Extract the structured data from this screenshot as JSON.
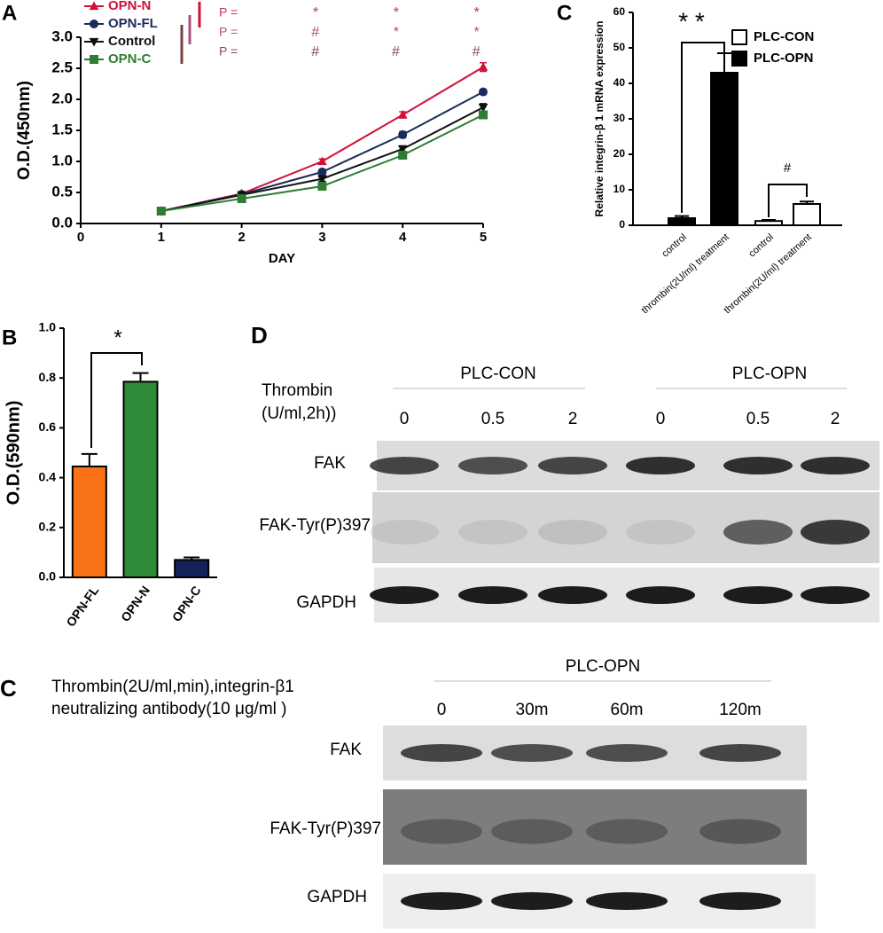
{
  "chart_data": [
    {
      "type": "line",
      "panel": "A",
      "x_label": "DAY",
      "y_label": "O.D.(450nm)",
      "xlim": [
        0,
        5
      ],
      "xticks": [
        0,
        1,
        2,
        3,
        4,
        5
      ],
      "ylim": [
        0,
        3
      ],
      "yticks": [
        {
          "value": 0,
          "label": "0.0"
        },
        0.5,
        {
          "value": 1,
          "label": "1.0"
        },
        1.5,
        {
          "value": 2,
          "label": "2.0"
        },
        2.5,
        {
          "value": 3,
          "label": "3.0"
        }
      ],
      "legend": "upper left",
      "x": [
        1,
        2,
        3,
        4,
        5
      ],
      "series": [
        {
          "name": "OPN-N",
          "color": "#d0103a",
          "marker": "triangle",
          "values": [
            0.2,
            0.48,
            1.0,
            1.75,
            2.52
          ],
          "errors": [
            0.02,
            0.03,
            0.04,
            0.05,
            0.07
          ]
        },
        {
          "name": "OPN-FL",
          "color": "#1a2a5a",
          "marker": "circle",
          "values": [
            0.2,
            0.47,
            0.83,
            1.43,
            2.12
          ],
          "errors": [
            0.02,
            0.03,
            0.04,
            0.05,
            0.04
          ]
        },
        {
          "name": "Control",
          "color": "#111111",
          "marker": "down-triangle",
          "values": [
            0.2,
            0.46,
            0.72,
            1.2,
            1.87
          ],
          "errors": [
            0.02,
            0.03,
            0.04,
            0.05,
            0.06
          ]
        },
        {
          "name": "OPN-C",
          "color": "#2e7d32",
          "marker": "square",
          "values": [
            0.2,
            0.4,
            0.6,
            1.1,
            1.75
          ],
          "errors": [
            0.02,
            0.03,
            0.04,
            0.06,
            0.05
          ]
        }
      ],
      "annotations": [
        {
          "text": "P =",
          "color": "#c0305a",
          "symbols": [
            "*",
            "*",
            "*"
          ]
        },
        {
          "text": "P =",
          "color": "#b0507a",
          "symbols": [
            "#",
            "*",
            "*"
          ]
        },
        {
          "text": "P =",
          "color": "#8b4a4a",
          "symbols": [
            "#",
            "#",
            "#"
          ]
        }
      ]
    },
    {
      "type": "bar",
      "panel": "B",
      "y_label": "O.D.(590nm)",
      "categories": [
        "OPN-FL",
        "OPN-N",
        "OPN-C"
      ],
      "values": [
        0.445,
        0.785,
        0.07
      ],
      "errors": [
        0.05,
        0.035,
        0.01
      ],
      "colors": [
        "#f97316",
        "#2e8b3a",
        "#14215a"
      ],
      "ylim": [
        0,
        1
      ],
      "yticks": [
        {
          "value": 0,
          "label": "0.0"
        },
        0.2,
        0.4,
        0.6,
        0.8,
        {
          "value": 1,
          "label": "1.0"
        }
      ],
      "annotations": [
        {
          "text": "*"
        }
      ]
    },
    {
      "type": "grouped_bar",
      "panel": "C",
      "y_label": "Relative integrin-β 1 mRNA expression",
      "categories": [
        "control",
        "thrombin(2U/ml) treatment",
        "control",
        "thrombin(2U/ml) treatment"
      ],
      "series": [
        {
          "name": "PLC-CON",
          "color": "#ffffff",
          "values": [
            null,
            null,
            1.2,
            6
          ],
          "errors": [
            null,
            null,
            0.3,
            0.7
          ]
        },
        {
          "name": "PLC-OPN",
          "color": "#000000",
          "values": [
            2,
            43,
            null,
            null
          ],
          "errors": [
            0.6,
            5.5,
            null,
            null
          ]
        }
      ],
      "ylim": [
        0,
        60
      ],
      "yticks": [
        0,
        10,
        20,
        30,
        40,
        50,
        60
      ],
      "legend": "upper right",
      "annotations": [
        {
          "text": "* *"
        },
        {
          "text": "#"
        }
      ]
    }
  ],
  "blots": [
    {
      "panel": "D",
      "groups": [
        "PLC-CON",
        "PLC-OPN"
      ],
      "treatment": [
        "Thrombin",
        "(U/ml,2h))"
      ],
      "lanes": [
        "0",
        "0.5",
        "2",
        "0",
        "0.5",
        "2"
      ],
      "rows": [
        "FAK",
        "FAK-Tyr(P)397",
        "GAPDH"
      ]
    },
    {
      "panel": "C",
      "groups": [
        "PLC-OPN"
      ],
      "treatment": [
        "Thrombin(2U/ml,min),integrin-β1",
        "neutralizing antibody(10 μg/ml )"
      ],
      "lanes": [
        "0",
        "30m",
        "60m",
        "120m"
      ],
      "rows": [
        "FAK",
        "FAK-Tyr(P)397",
        "GAPDH"
      ]
    }
  ]
}
